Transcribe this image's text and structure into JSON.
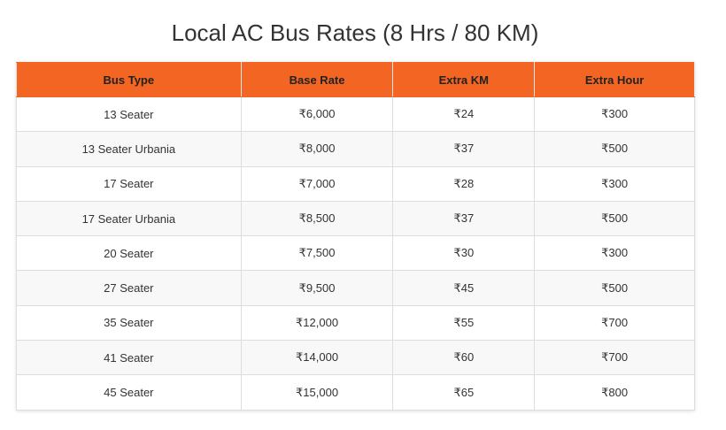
{
  "header": {
    "title": "Local AC Bus Rates (8 Hrs / 80 KM)"
  },
  "table": {
    "columns": [
      "Bus Type",
      "Base Rate",
      "Extra KM",
      "Extra Hour"
    ],
    "rows": [
      [
        "13 Seater",
        "₹6,000",
        "₹24",
        "₹300"
      ],
      [
        "13 Seater Urbania",
        "₹8,000",
        "₹37",
        "₹500"
      ],
      [
        "17 Seater",
        "₹7,000",
        "₹28",
        "₹300"
      ],
      [
        "17 Seater Urbania",
        "₹8,500",
        "₹37",
        "₹500"
      ],
      [
        "20 Seater",
        "₹7,500",
        "₹30",
        "₹300"
      ],
      [
        "27 Seater",
        "₹9,500",
        "₹45",
        "₹500"
      ],
      [
        "35 Seater",
        "₹12,000",
        "₹55",
        "₹700"
      ],
      [
        "41 Seater",
        "₹14,000",
        "₹60",
        "₹700"
      ],
      [
        "45 Seater",
        "₹15,000",
        "₹65",
        "₹800"
      ]
    ]
  }
}
